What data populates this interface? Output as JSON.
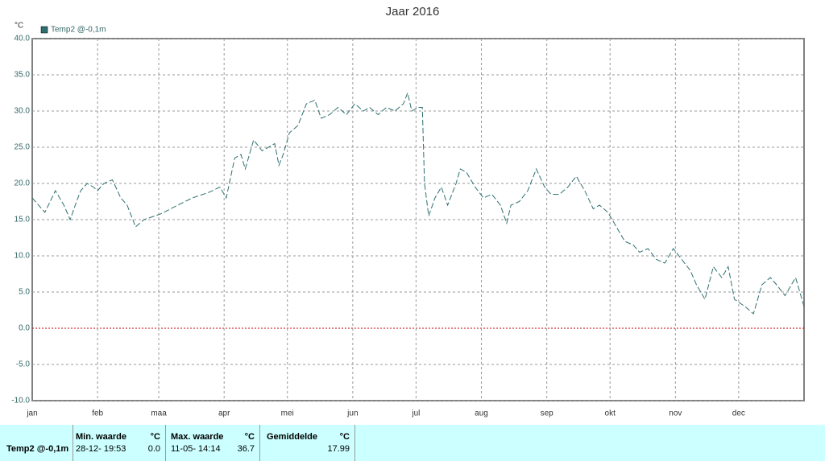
{
  "chart_data": {
    "type": "line",
    "title": "Jaar 2016",
    "y_unit": "°C",
    "x": [
      0,
      6,
      11,
      15,
      18,
      21,
      23,
      26,
      29,
      31,
      34,
      38,
      42,
      45,
      49,
      53,
      61,
      69,
      76,
      84,
      89,
      92,
      96,
      99,
      101,
      105,
      109,
      115,
      117,
      119,
      122,
      126,
      130,
      134,
      137,
      141,
      145,
      149,
      153,
      157,
      160,
      164,
      168,
      172,
      176,
      178,
      180,
      183,
      185,
      186,
      188,
      191,
      194,
      197,
      201,
      203,
      206,
      210,
      214,
      218,
      222,
      225,
      227,
      231,
      235,
      239,
      243,
      246,
      250,
      254,
      258,
      262,
      266,
      269,
      273,
      277,
      281,
      285,
      288,
      292,
      296,
      300,
      304,
      308,
      312,
      315,
      319,
      323,
      327,
      330,
      333,
      338,
      342,
      346,
      350,
      353,
      357,
      362,
      366
    ],
    "series": [
      {
        "name": "Temp2 @-0,1m",
        "color": "#2f6f6f",
        "values": [
          18,
          16,
          19,
          17,
          15,
          17.5,
          19,
          20,
          19.5,
          19,
          20,
          20.5,
          18,
          17,
          14,
          15,
          15.8,
          17,
          18,
          18.8,
          19.5,
          18,
          23.5,
          24,
          22,
          26,
          24.5,
          25.5,
          22.5,
          24,
          27,
          28,
          31,
          31.5,
          29,
          29.5,
          30.5,
          29.5,
          31,
          30,
          30.5,
          29.5,
          30.5,
          30,
          31,
          32.5,
          30,
          30.5,
          30.5,
          20,
          15.5,
          18,
          19.5,
          17,
          20,
          22,
          21.5,
          19.5,
          18,
          18.5,
          17,
          14.5,
          17,
          17.5,
          19,
          22,
          19.5,
          18.5,
          18.5,
          19.5,
          21,
          19,
          16.5,
          17,
          16,
          14,
          12,
          11.5,
          10.5,
          11,
          9.5,
          9,
          11,
          9.5,
          8,
          6,
          4,
          8.5,
          7,
          8.5,
          4,
          3,
          2,
          6,
          7,
          6,
          4.5,
          7,
          3
        ]
      }
    ],
    "xlim": [
      0,
      366
    ],
    "xticks": [
      {
        "value": 0,
        "label": "jan"
      },
      {
        "value": 31,
        "label": "feb"
      },
      {
        "value": 60,
        "label": "maa"
      },
      {
        "value": 91,
        "label": "apr"
      },
      {
        "value": 121,
        "label": "mei"
      },
      {
        "value": 152,
        "label": "jun"
      },
      {
        "value": 182,
        "label": "jul"
      },
      {
        "value": 213,
        "label": "aug"
      },
      {
        "value": 244,
        "label": "sep"
      },
      {
        "value": 274,
        "label": "okt"
      },
      {
        "value": 305,
        "label": "nov"
      },
      {
        "value": 335,
        "label": "dec"
      }
    ],
    "ylim": [
      -10,
      40
    ],
    "yticks": [
      {
        "value": -10,
        "label": "-10.0"
      },
      {
        "value": -5,
        "label": "-5.0"
      },
      {
        "value": 0,
        "label": "0.0"
      },
      {
        "value": 5,
        "label": "5.0"
      },
      {
        "value": 10,
        "label": "10.0"
      },
      {
        "value": 15,
        "label": "15.0"
      },
      {
        "value": 20,
        "label": "20.0"
      },
      {
        "value": 25,
        "label": "25.0"
      },
      {
        "value": 30,
        "label": "30.0"
      },
      {
        "value": 35,
        "label": "35.0"
      },
      {
        "value": 40,
        "label": "40.0"
      }
    ],
    "grid": true,
    "zero_line_color": "#cc0000",
    "legend": "top-left"
  },
  "table": {
    "row_label": "Temp2 @-0,1m",
    "min": {
      "header": "Min. waarde",
      "unit": "°C",
      "time": "28-12- 19:53",
      "value": "0.0"
    },
    "max": {
      "header": "Max. waarde",
      "unit": "°C",
      "time": "11-05- 14:14",
      "value": "36.7"
    },
    "avg": {
      "header": "Gemiddelde",
      "unit": "°C",
      "value": "17.99"
    }
  }
}
